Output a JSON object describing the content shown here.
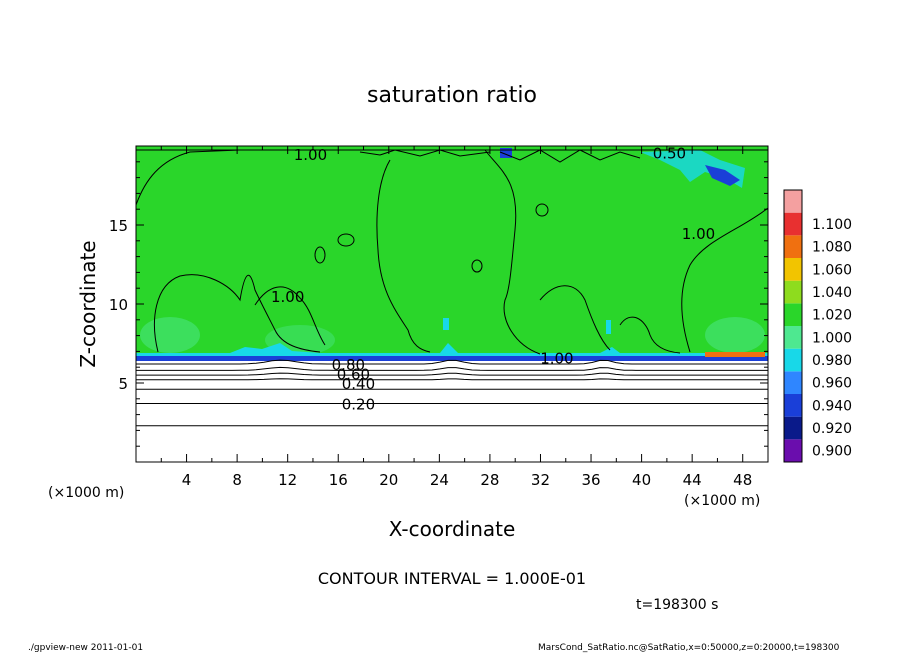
{
  "chart_data": {
    "type": "heatmap",
    "title": "saturation ratio",
    "xlabel": "X-coordinate",
    "ylabel": "Z-coordinate",
    "x_unit": "(×1000 m)",
    "y_unit": "(×1000 m)",
    "xlim": [
      0,
      50
    ],
    "ylim": [
      0,
      20
    ],
    "x_ticks": [
      4,
      8,
      12,
      16,
      20,
      24,
      28,
      32,
      36,
      40,
      44,
      48
    ],
    "y_ticks": [
      5,
      10,
      15
    ],
    "colorbar": {
      "levels": [
        0.9,
        0.92,
        0.94,
        0.96,
        0.98,
        1.0,
        1.02,
        1.04,
        1.06,
        1.08,
        1.1
      ],
      "labels": [
        "0.900",
        "0.920",
        "0.940",
        "0.960",
        "0.980",
        "1.000",
        "1.020",
        "1.040",
        "1.060",
        "1.080",
        "1.100"
      ],
      "colors": [
        "#6a0dad",
        "#0a1a8a",
        "#1a3fd8",
        "#2f86ff",
        "#18d8e8",
        "#4ee890",
        "#2ad62a",
        "#8edc1e",
        "#f2c400",
        "#f07010",
        "#e83030",
        "#f4a0a0"
      ]
    },
    "field": {
      "dominant_level": 1.0,
      "dominant_color": "#2ad62a",
      "cloud_base_z": 6.6,
      "below_base": "unfilled"
    },
    "contour_labels": [
      {
        "text": "1.00",
        "x": 13.8,
        "z": 19.5
      },
      {
        "text": "0.50",
        "x": 42.2,
        "z": 19.6
      },
      {
        "text": "1.00",
        "x": 12.0,
        "z": 10.5
      },
      {
        "text": "1.00",
        "x": 44.5,
        "z": 14.5
      },
      {
        "text": "1.00",
        "x": 33.3,
        "z": 6.6
      },
      {
        "text": "0.80",
        "x": 16.8,
        "z": 6.2
      },
      {
        "text": "0.60",
        "x": 17.2,
        "z": 5.6
      },
      {
        "text": "0.40",
        "x": 17.6,
        "z": 5.0
      },
      {
        "text": "0.20",
        "x": 17.6,
        "z": 3.7
      }
    ],
    "contour_lines_z": [
      6.2,
      5.8,
      5.5,
      5.2,
      4.6,
      3.7,
      2.3
    ],
    "contour_interval": "CONTOUR INTERVAL = 1.000E-01",
    "time_label": "t=198300 s"
  },
  "footer": {
    "left": "./gpview-new  2011-01-01",
    "right": "MarsCond_SatRatio.nc@SatRatio,x=0:50000,z=0:20000,t=198300"
  }
}
